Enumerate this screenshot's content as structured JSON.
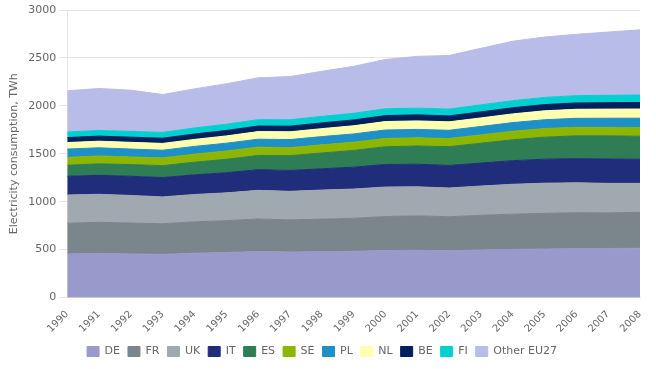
{
  "chart_data": {
    "type": "area",
    "stacked": true,
    "x": [
      1990,
      1991,
      1992,
      1993,
      1994,
      1995,
      1996,
      1997,
      1998,
      1999,
      2000,
      2001,
      2002,
      2003,
      2004,
      2005,
      2006,
      2007,
      2008
    ],
    "xlim": [
      1990,
      2008
    ],
    "xticks": [
      1990,
      1991,
      1992,
      1993,
      1994,
      1995,
      1996,
      1997,
      1998,
      1999,
      2000,
      2001,
      2002,
      2003,
      2004,
      2005,
      2006,
      2007,
      2008
    ],
    "ylabel": "Electricity consumption, TWh",
    "ylim": [
      0,
      3000
    ],
    "yticks": [
      0,
      500,
      1000,
      1500,
      2000,
      2500,
      3000
    ],
    "grid": true,
    "legend": "bottom",
    "series": [
      {
        "name": "DE",
        "color": "#9999cc",
        "values": [
          455,
          460,
          455,
          450,
          462,
          470,
          480,
          475,
          478,
          482,
          490,
          492,
          488,
          496,
          502,
          506,
          510,
          512,
          514
        ]
      },
      {
        "name": "FR",
        "color": "#7b868c",
        "values": [
          320,
          325,
          322,
          320,
          328,
          332,
          340,
          335,
          340,
          345,
          355,
          360,
          355,
          362,
          368,
          372,
          375,
          372,
          375
        ]
      },
      {
        "name": "UK",
        "color": "#a0a8b0",
        "values": [
          295,
          292,
          288,
          280,
          285,
          290,
          298,
          298,
          303,
          305,
          308,
          303,
          300,
          305,
          312,
          315,
          312,
          307,
          302
        ]
      },
      {
        "name": "IT",
        "color": "#1f2d7b",
        "values": [
          195,
          198,
          200,
          202,
          205,
          210,
          216,
          218,
          222,
          228,
          235,
          236,
          235,
          240,
          246,
          250,
          252,
          254,
          252
        ]
      },
      {
        "name": "ES",
        "color": "#2e7d55",
        "values": [
          115,
          120,
          122,
          124,
          132,
          140,
          148,
          154,
          165,
          175,
          185,
          190,
          196,
          207,
          218,
          230,
          238,
          242,
          240
        ]
      },
      {
        "name": "SE",
        "color": "#8db600",
        "values": [
          82,
          82,
          80,
          81,
          84,
          86,
          87,
          84,
          85,
          86,
          87,
          86,
          85,
          87,
          89,
          90,
          89,
          88,
          90
        ]
      },
      {
        "name": "PL",
        "color": "#1e90c8",
        "values": [
          87,
          85,
          82,
          80,
          81,
          82,
          83,
          84,
          86,
          86,
          88,
          87,
          86,
          88,
          90,
          92,
          94,
          96,
          98
        ]
      },
      {
        "name": "NL",
        "color": "#ffffb0",
        "values": [
          68,
          69,
          70,
          71,
          73,
          76,
          79,
          81,
          83,
          85,
          88,
          89,
          88,
          89,
          91,
          93,
          94,
          95,
          96
        ]
      },
      {
        "name": "BE",
        "color": "#00215e",
        "values": [
          52,
          53,
          54,
          54,
          56,
          57,
          58,
          59,
          60,
          61,
          62,
          63,
          62,
          63,
          64,
          65,
          66,
          67,
          68
        ]
      },
      {
        "name": "FI",
        "color": "#00d0d0",
        "values": [
          58,
          59,
          60,
          61,
          63,
          65,
          67,
          67,
          68,
          69,
          71,
          70,
          71,
          73,
          74,
          75,
          76,
          77,
          78
        ]
      },
      {
        "name": "Other EU27",
        "color": "#b8bce8",
        "values": [
          430,
          438,
          430,
          395,
          408,
          422,
          436,
          450,
          470,
          490,
          515,
          540,
          560,
          590,
          620,
          630,
          640,
          660,
          680
        ]
      }
    ]
  }
}
